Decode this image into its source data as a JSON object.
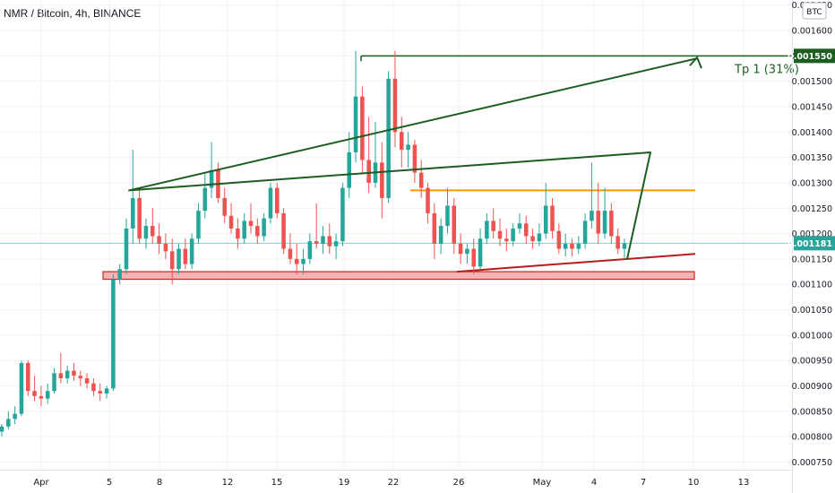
{
  "header": {
    "title": "NMR / Bitcoin, 4h, BINANCE",
    "unit": "BTC"
  },
  "colors": {
    "up": "#26a69a",
    "down": "#ef5350",
    "resistance": "#ff9800",
    "support_line": "#b71c1c",
    "support_zone_fill": "#ef9a9a",
    "support_zone_border": "#c62828",
    "target": "#1b5e20",
    "price_line": "#26a69a"
  },
  "badges": {
    "target": "0.001550",
    "last_price": "0.001181"
  },
  "annotations": {
    "target_label": "Tp 1 (31%)"
  },
  "chart_data": {
    "type": "candlestick",
    "title": "NMR / Bitcoin, 4h, BINANCE",
    "ylim": [
      0.000735,
      0.00166
    ],
    "y_ticks": [
      "0.001650",
      "0.001600",
      "0.001550",
      "0.001500",
      "0.001450",
      "0.001400",
      "0.001350",
      "0.001300",
      "0.001250",
      "0.001200",
      "0.001181",
      "0.001150",
      "0.001100",
      "0.001050",
      "0.001000",
      "0.000950",
      "0.000900",
      "0.000850",
      "0.000800",
      "0.000750"
    ],
    "x_ticks": [
      "Apr",
      "5",
      "8",
      "12",
      "15",
      "19",
      "22",
      "26",
      "May",
      "4",
      "7",
      "10",
      "13"
    ],
    "last_price": 0.001181,
    "resistance_level": 0.001285,
    "support_zone": [
      0.00111,
      0.001125
    ],
    "target_level": 0.00155,
    "ascending_support": {
      "from": [
        "26",
        0.001125
      ],
      "to": [
        "10",
        0.00116
      ]
    },
    "projection_path": [
      [
        "4",
        0.00115
      ],
      [
        "7",
        0.00136
      ],
      [
        "8",
        0.001285
      ],
      [
        "10",
        0.001545
      ]
    ],
    "candles": [
      [
        0.00081,
        0.000825,
        0.0008,
        0.00082
      ],
      [
        0.00082,
        0.00085,
        0.000815,
        0.000835
      ],
      [
        0.000835,
        0.00086,
        0.000825,
        0.000845
      ],
      [
        0.000845,
        0.00095,
        0.00084,
        0.000945
      ],
      [
        0.000945,
        0.00095,
        0.00088,
        0.00089
      ],
      [
        0.00089,
        0.00092,
        0.00087,
        0.00088
      ],
      [
        0.00088,
        0.0009,
        0.00086,
        0.000875
      ],
      [
        0.000875,
        0.000905,
        0.000865,
        0.00089
      ],
      [
        0.00089,
        0.000935,
        0.000885,
        0.000925
      ],
      [
        0.000925,
        0.000965,
        0.000905,
        0.000915
      ],
      [
        0.000915,
        0.00094,
        0.000905,
        0.00093
      ],
      [
        0.00093,
        0.000945,
        0.00091,
        0.00092
      ],
      [
        0.00092,
        0.00093,
        0.0009,
        0.000915
      ],
      [
        0.000915,
        0.000925,
        0.000895,
        0.000905
      ],
      [
        0.000905,
        0.000915,
        0.00088,
        0.00089
      ],
      [
        0.00089,
        0.000905,
        0.00087,
        0.000885
      ],
      [
        0.000885,
        0.0009,
        0.000875,
        0.000895
      ],
      [
        0.000895,
        0.00112,
        0.00089,
        0.00111
      ],
      [
        0.00111,
        0.00114,
        0.0011,
        0.00113
      ],
      [
        0.00113,
        0.00123,
        0.00112,
        0.00121
      ],
      [
        0.00121,
        0.001365,
        0.00118,
        0.00127
      ],
      [
        0.00127,
        0.00129,
        0.00118,
        0.00119
      ],
      [
        0.00119,
        0.00123,
        0.00117,
        0.001215
      ],
      [
        0.001215,
        0.00125,
        0.00118,
        0.001195
      ],
      [
        0.001195,
        0.00122,
        0.00116,
        0.00118
      ],
      [
        0.00118,
        0.0012,
        0.00115,
        0.001165
      ],
      [
        0.001165,
        0.00119,
        0.0011,
        0.00113
      ],
      [
        0.00113,
        0.00118,
        0.00112,
        0.00117
      ],
      [
        0.00117,
        0.00119,
        0.00113,
        0.00114
      ],
      [
        0.00114,
        0.0012,
        0.00113,
        0.00119
      ],
      [
        0.00119,
        0.00126,
        0.00118,
        0.001245
      ],
      [
        0.001245,
        0.00132,
        0.00123,
        0.00129
      ],
      [
        0.00129,
        0.00138,
        0.00127,
        0.001325
      ],
      [
        0.001325,
        0.00134,
        0.00126,
        0.00127
      ],
      [
        0.00127,
        0.00129,
        0.00122,
        0.001235
      ],
      [
        0.001235,
        0.00126,
        0.0012,
        0.00121
      ],
      [
        0.00121,
        0.00123,
        0.00117,
        0.00119
      ],
      [
        0.00119,
        0.00124,
        0.00118,
        0.001225
      ],
      [
        0.001225,
        0.00126,
        0.0012,
        0.001215
      ],
      [
        0.001215,
        0.00123,
        0.00118,
        0.001195
      ],
      [
        0.001195,
        0.00124,
        0.001185,
        0.00123
      ],
      [
        0.00123,
        0.0013,
        0.00122,
        0.00129
      ],
      [
        0.00129,
        0.0013,
        0.00123,
        0.00124
      ],
      [
        0.00124,
        0.00125,
        0.00116,
        0.00117
      ],
      [
        0.00117,
        0.0012,
        0.00114,
        0.00115
      ],
      [
        0.00115,
        0.00118,
        0.00112,
        0.00114
      ],
      [
        0.00114,
        0.00117,
        0.00112,
        0.00115
      ],
      [
        0.00115,
        0.0012,
        0.00114,
        0.001185
      ],
      [
        0.001185,
        0.00126,
        0.00117,
        0.00118
      ],
      [
        0.00118,
        0.001215,
        0.00116,
        0.001195
      ],
      [
        0.001195,
        0.00122,
        0.00116,
        0.001175
      ],
      [
        0.001175,
        0.0012,
        0.00115,
        0.001185
      ],
      [
        0.001185,
        0.0013,
        0.001175,
        0.00129
      ],
      [
        0.00129,
        0.0014,
        0.00127,
        0.00136
      ],
      [
        0.00136,
        0.00156,
        0.00134,
        0.00147
      ],
      [
        0.00147,
        0.00149,
        0.00132,
        0.001345
      ],
      [
        0.001345,
        0.00143,
        0.00128,
        0.0013
      ],
      [
        0.0013,
        0.00142,
        0.00129,
        0.00134
      ],
      [
        0.00134,
        0.00138,
        0.00123,
        0.00127
      ],
      [
        0.00127,
        0.00152,
        0.00126,
        0.001505
      ],
      [
        0.001505,
        0.00156,
        0.00137,
        0.0014
      ],
      [
        0.0014,
        0.00143,
        0.00133,
        0.001365
      ],
      [
        0.001365,
        0.0014,
        0.00133,
        0.001375
      ],
      [
        0.001375,
        0.001385,
        0.0013,
        0.00132
      ],
      [
        0.00132,
        0.001345,
        0.00127,
        0.00129
      ],
      [
        0.00129,
        0.0013,
        0.00122,
        0.00124
      ],
      [
        0.00124,
        0.00126,
        0.00115,
        0.00118
      ],
      [
        0.00118,
        0.00123,
        0.00116,
        0.001215
      ],
      [
        0.001215,
        0.00129,
        0.0012,
        0.001255
      ],
      [
        0.001255,
        0.00127,
        0.00116,
        0.00118
      ],
      [
        0.00118,
        0.0012,
        0.00114,
        0.00116
      ],
      [
        0.00116,
        0.00118,
        0.00114,
        0.00117
      ],
      [
        0.00117,
        0.00119,
        0.00112,
        0.001135
      ],
      [
        0.001135,
        0.00121,
        0.00113,
        0.00119
      ],
      [
        0.00119,
        0.00124,
        0.00118,
        0.001225
      ],
      [
        0.001225,
        0.00125,
        0.00119,
        0.001205
      ],
      [
        0.001205,
        0.00123,
        0.001175,
        0.00119
      ],
      [
        0.00119,
        0.00121,
        0.001165,
        0.001185
      ],
      [
        0.001185,
        0.00122,
        0.001175,
        0.00121
      ],
      [
        0.00121,
        0.00124,
        0.0012,
        0.00122
      ],
      [
        0.00122,
        0.001235,
        0.00118,
        0.001195
      ],
      [
        0.001195,
        0.00121,
        0.00117,
        0.001185
      ],
      [
        0.001185,
        0.00122,
        0.001175,
        0.0012
      ],
      [
        0.0012,
        0.0013,
        0.00119,
        0.001255
      ],
      [
        0.001255,
        0.00127,
        0.00119,
        0.001205
      ],
      [
        0.001205,
        0.00122,
        0.00116,
        0.00117
      ],
      [
        0.00117,
        0.0012,
        0.001155,
        0.00118
      ],
      [
        0.00118,
        0.00119,
        0.001155,
        0.00117
      ],
      [
        0.00117,
        0.001195,
        0.00116,
        0.00118
      ],
      [
        0.00118,
        0.00124,
        0.00117,
        0.001225
      ],
      [
        0.001225,
        0.00134,
        0.00121,
        0.001245
      ],
      [
        0.001245,
        0.0013,
        0.00118,
        0.0012
      ],
      [
        0.0012,
        0.00129,
        0.00119,
        0.001245
      ],
      [
        0.001245,
        0.00126,
        0.00118,
        0.001195
      ],
      [
        0.001195,
        0.00121,
        0.00116,
        0.00117
      ],
      [
        0.00117,
        0.00119,
        0.00115,
        0.001181
      ]
    ]
  }
}
